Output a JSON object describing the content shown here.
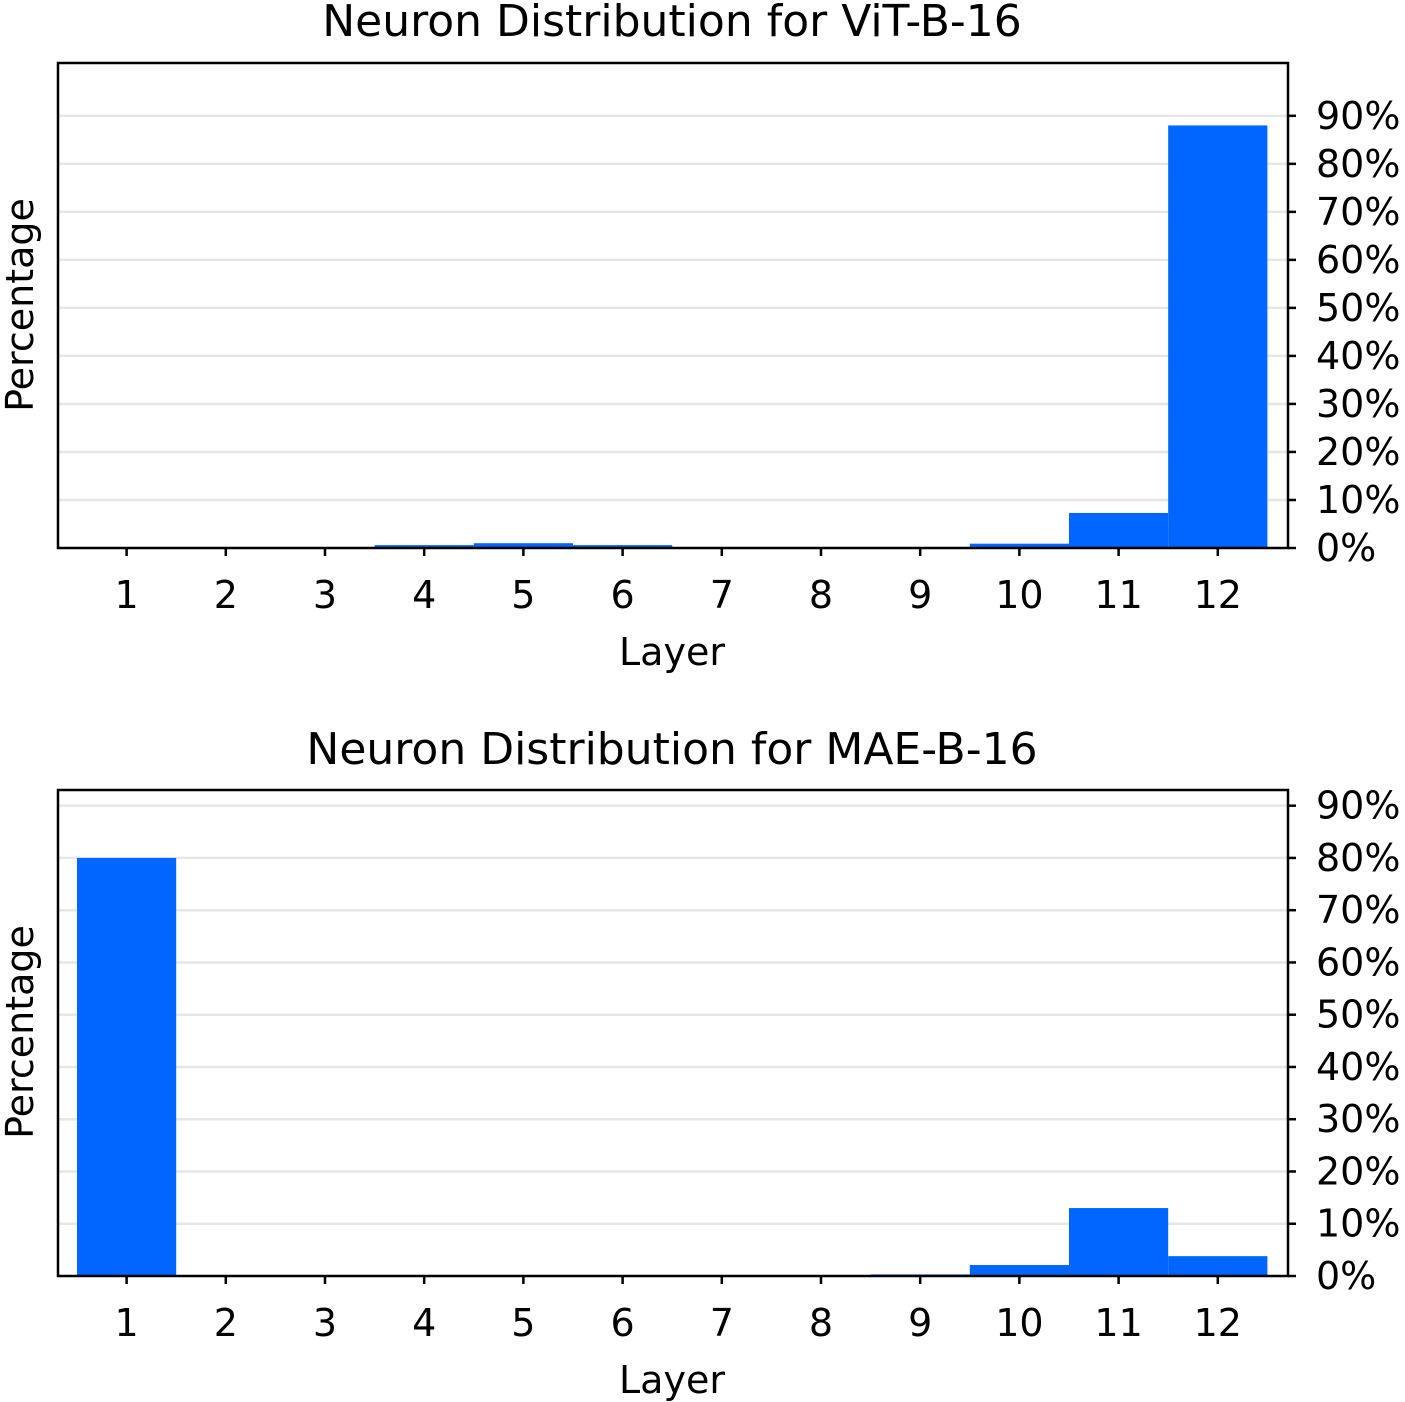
{
  "chart_data": [
    {
      "type": "bar",
      "title": "Neuron Distribution for ViT-B-16",
      "xlabel": "Layer",
      "ylabel": "Percentage",
      "categories": [
        "1",
        "2",
        "3",
        "4",
        "5",
        "6",
        "7",
        "8",
        "9",
        "10",
        "11",
        "12"
      ],
      "values": [
        0,
        0,
        0,
        0.6,
        1.0,
        0.6,
        0,
        0,
        0,
        0.9,
        7.3,
        88.0
      ],
      "ylim": [
        0,
        101
      ],
      "yticks": [
        0,
        10,
        20,
        30,
        40,
        50,
        60,
        70,
        80,
        90
      ],
      "ytick_labels": [
        "0%",
        "10%",
        "20%",
        "30%",
        "40%",
        "50%",
        "60%",
        "70%",
        "80%",
        "90%"
      ],
      "y_axis_side": "right",
      "grid": "horizontal",
      "color": "#0066ff"
    },
    {
      "type": "bar",
      "title": "Neuron Distribution for MAE-B-16",
      "xlabel": "Layer",
      "ylabel": "Percentage",
      "categories": [
        "1",
        "2",
        "3",
        "4",
        "5",
        "6",
        "7",
        "8",
        "9",
        "10",
        "11",
        "12"
      ],
      "values": [
        80.0,
        0,
        0,
        0,
        0,
        0,
        0,
        0,
        0.3,
        2.1,
        13.0,
        3.8
      ],
      "ylim": [
        0,
        93
      ],
      "yticks": [
        0,
        10,
        20,
        30,
        40,
        50,
        60,
        70,
        80,
        90
      ],
      "ytick_labels": [
        "0%",
        "10%",
        "20%",
        "30%",
        "40%",
        "50%",
        "60%",
        "70%",
        "80%",
        "90%"
      ],
      "y_axis_side": "right",
      "grid": "horizontal",
      "color": "#0066ff"
    }
  ]
}
